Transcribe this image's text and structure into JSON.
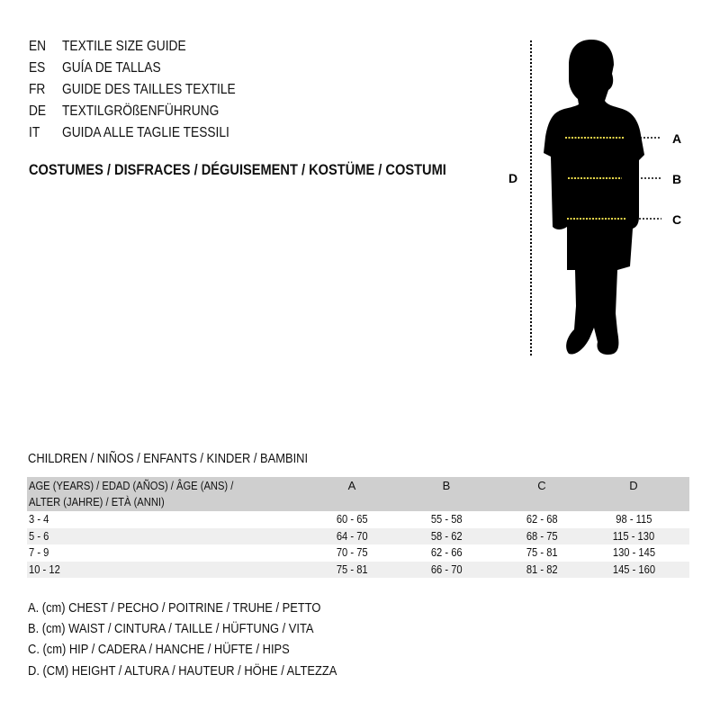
{
  "titles": [
    {
      "code": "EN",
      "text": "TEXTILE SIZE GUIDE"
    },
    {
      "code": "ES",
      "text": "GUÍA DE TALLAS"
    },
    {
      "code": "FR",
      "text": "GUIDE DES TAILLES TEXTILE"
    },
    {
      "code": "DE",
      "text": "TEXTILGRÖßENFÜHRUNG"
    },
    {
      "code": "IT",
      "text": "GUIDA ALLE TAGLIE TESSILI"
    }
  ],
  "category": "COSTUMES / DISFRACES / DÉGUISEMENT / KOSTÜME / COSTUMI",
  "figure": {
    "labels": {
      "a": "A",
      "b": "B",
      "c": "C",
      "d": "D"
    },
    "silhouette_color": "#000000",
    "measure_line_color": "#e8d84a"
  },
  "table": {
    "caption": "CHILDREN / NIÑOS / ENFANTS / KINDER / BAMBINI",
    "header_line1": "AGE (YEARS) / EDAD (AÑOS) / ÂGE (ANS) /",
    "header_line2": "ALTER (JAHRE) / ETÀ (ANNI)",
    "columns": [
      "A",
      "B",
      "C",
      "D"
    ],
    "rows": [
      [
        "3 - 4",
        "60 - 65",
        "55 - 58",
        "62 - 68",
        "98 - 115"
      ],
      [
        "5 - 6",
        "64 - 70",
        "58 - 62",
        "68 - 75",
        "115 - 130"
      ],
      [
        "7 - 9",
        "70 - 75",
        "62 - 66",
        "75 - 81",
        "130 - 145"
      ],
      [
        "10 - 12",
        "75 - 81",
        "66 - 70",
        "81 - 82",
        "145 - 160"
      ]
    ]
  },
  "legend": [
    "A. (cm) CHEST / PECHO / POITRINE / TRUHE / PETTO",
    "B. (cm) WAIST / CINTURA / TAILLE / HÜFTUNG / VITA",
    "C. (cm) HIP / CADERA / HANCHE / HÜFTE / HIPS",
    "D. (CM) HEIGHT / ALTURA / HAUTEUR / HÖHE / ALTEZZA"
  ]
}
